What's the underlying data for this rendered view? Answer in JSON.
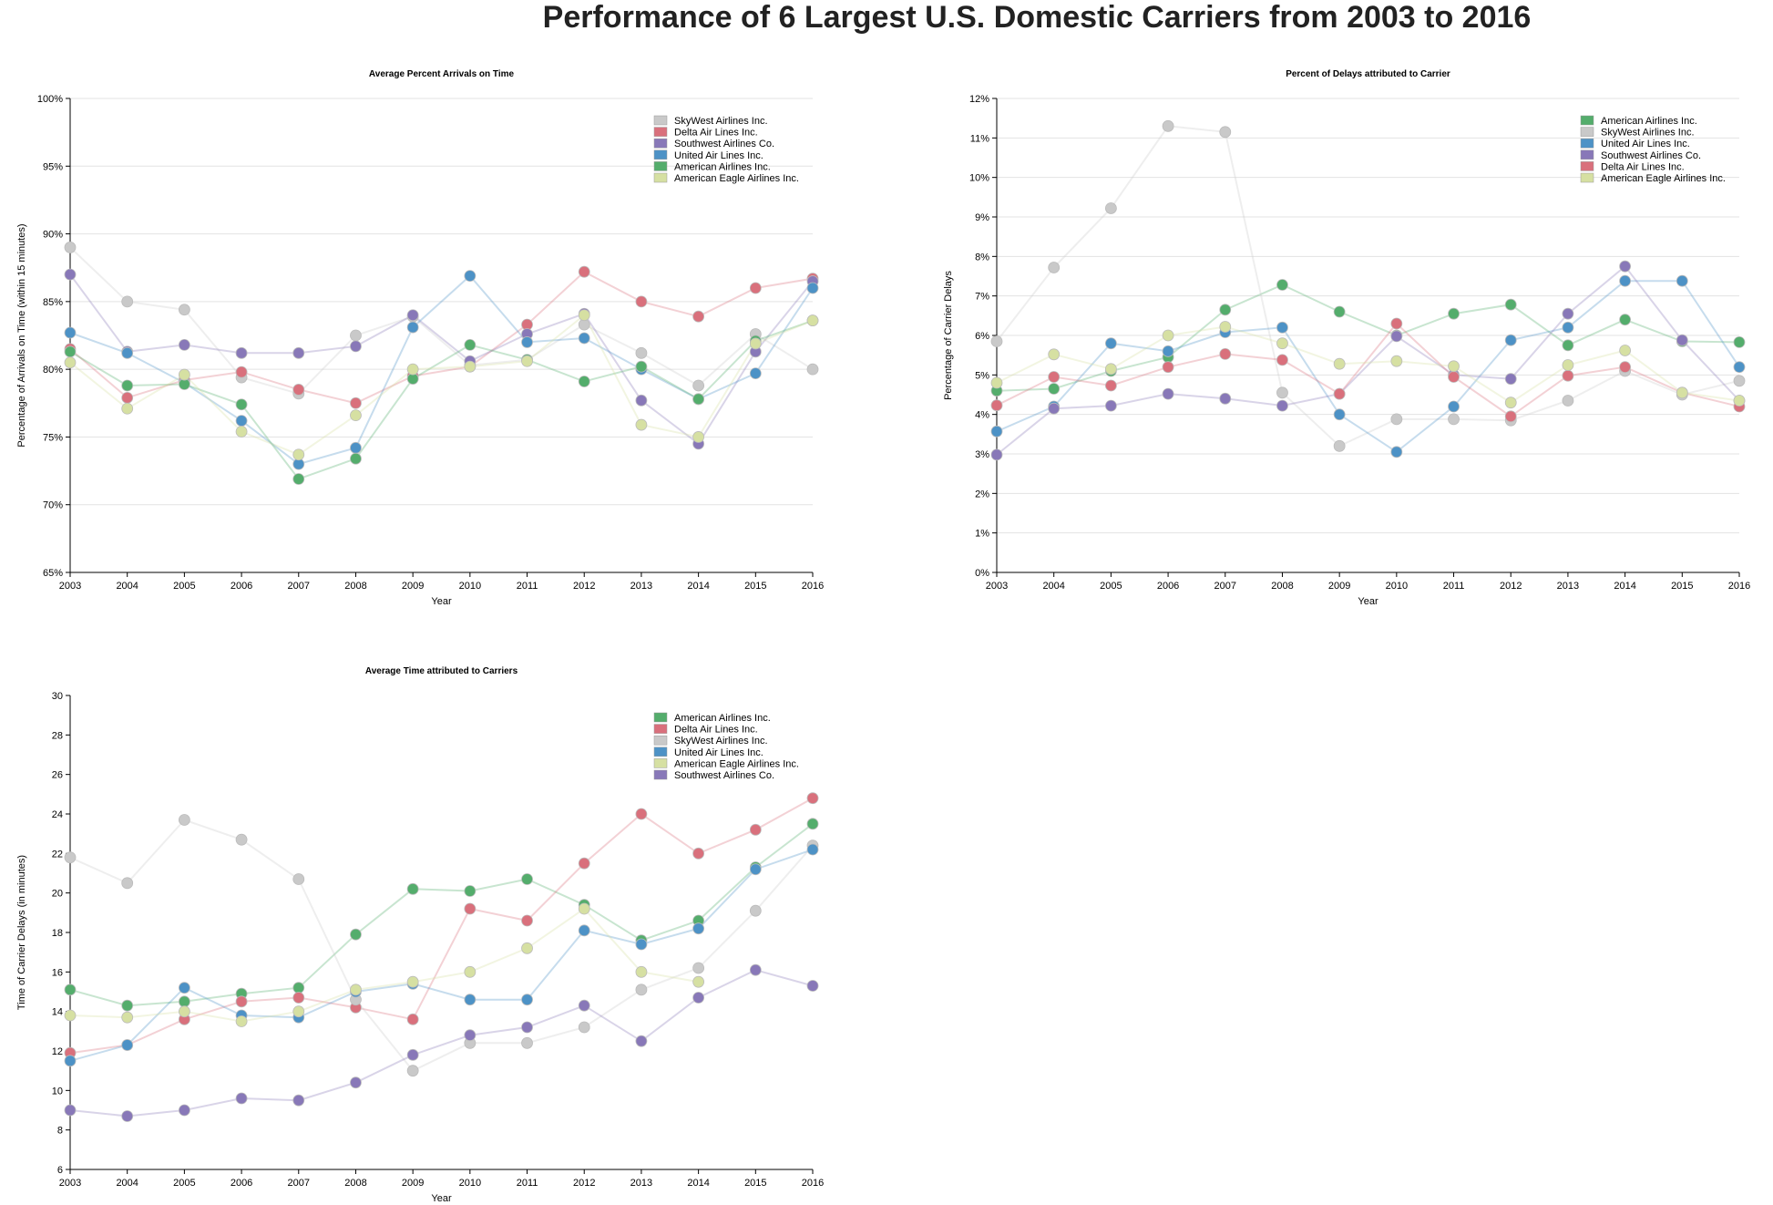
{
  "page": {
    "title": "Performance of 6 Largest U.S. Domestic Carriers from 2003 to 2016"
  },
  "colors": {
    "SkyWest Airlines Inc.": "#c9c9c9",
    "Delta Air Lines Inc.": "#d9707c",
    "Southwest Airlines Co.": "#8878b8",
    "United Air Lines Inc.": "#4d92c6",
    "American Airlines Inc.": "#54ad6c",
    "American Eagle Airlines Inc.": "#d6e0a2"
  },
  "chart_data": [
    {
      "type": "line",
      "title": "Average Percent Arrivals on Time",
      "xlabel": "Year",
      "ylabel": "Percentage of Arrivals on Time (within 15 minutes)",
      "x": [
        "2003",
        "2004",
        "2005",
        "2006",
        "2007",
        "2008",
        "2009",
        "2010",
        "2011",
        "2012",
        "2013",
        "2014",
        "2015",
        "2016"
      ],
      "ylim": [
        65,
        100
      ],
      "yticks": [
        65,
        70,
        75,
        80,
        85,
        90,
        95,
        100
      ],
      "ytick_labels": [
        "65%",
        "70%",
        "75%",
        "80%",
        "85%",
        "90%",
        "95%",
        "100%"
      ],
      "grid": true,
      "legend_position": "top-right",
      "series": [
        {
          "name": "SkyWest Airlines Inc.",
          "values": [
            89.0,
            85.0,
            84.4,
            79.4,
            78.2,
            82.5,
            83.9,
            80.3,
            80.7,
            83.3,
            81.2,
            78.8,
            82.6,
            80.0
          ]
        },
        {
          "name": "Delta Air Lines Inc.",
          "values": [
            81.5,
            77.9,
            79.2,
            79.8,
            78.5,
            77.5,
            79.5,
            80.2,
            83.3,
            87.2,
            85.0,
            83.9,
            86.0,
            86.7
          ]
        },
        {
          "name": "Southwest Airlines Co.",
          "values": [
            87.0,
            81.3,
            81.8,
            81.2,
            81.2,
            81.7,
            84.0,
            80.6,
            82.6,
            84.1,
            77.7,
            74.5,
            81.3,
            86.5
          ]
        },
        {
          "name": "United Air Lines Inc.",
          "values": [
            82.7,
            81.2,
            79.0,
            76.2,
            73.0,
            74.2,
            83.1,
            86.9,
            82.0,
            82.3,
            80.0,
            77.8,
            79.7,
            86.0
          ]
        },
        {
          "name": "American Airlines Inc.",
          "values": [
            81.3,
            78.8,
            78.9,
            77.4,
            71.9,
            73.4,
            79.3,
            81.8,
            80.7,
            79.1,
            80.2,
            77.8,
            82.1,
            83.6
          ]
        },
        {
          "name": "American Eagle Airlines Inc.",
          "values": [
            80.5,
            77.1,
            79.6,
            75.4,
            73.7,
            76.6,
            80.0,
            80.2,
            80.6,
            84.0,
            75.9,
            75.0,
            81.9,
            83.6
          ]
        }
      ]
    },
    {
      "type": "line",
      "title": "Percent of Delays attributed to Carrier",
      "xlabel": "Year",
      "ylabel": "Percentage of Carrier Delays",
      "x": [
        "2003",
        "2004",
        "2005",
        "2006",
        "2007",
        "2008",
        "2009",
        "2010",
        "2011",
        "2012",
        "2013",
        "2014",
        "2015",
        "2016"
      ],
      "ylim": [
        0,
        12
      ],
      "yticks": [
        0,
        1,
        2,
        3,
        4,
        5,
        6,
        7,
        8,
        9,
        10,
        11,
        12
      ],
      "ytick_labels": [
        "0%",
        "1%",
        "2%",
        "3%",
        "4%",
        "5%",
        "6%",
        "7%",
        "8%",
        "9%",
        "10%",
        "11%",
        "12%"
      ],
      "grid": true,
      "legend_position": "top-right",
      "series": [
        {
          "name": "American Airlines Inc.",
          "values": [
            4.6,
            4.65,
            5.1,
            5.45,
            6.65,
            7.28,
            6.6,
            6.0,
            6.55,
            6.78,
            5.75,
            6.4,
            5.85,
            5.83
          ]
        },
        {
          "name": "SkyWest Airlines Inc.",
          "values": [
            5.85,
            7.72,
            9.22,
            11.3,
            11.15,
            4.55,
            3.2,
            3.88,
            3.88,
            3.85,
            4.35,
            5.1,
            4.5,
            4.85
          ]
        },
        {
          "name": "United Air Lines Inc.",
          "values": [
            3.57,
            4.2,
            5.8,
            5.6,
            6.08,
            6.2,
            4.0,
            3.05,
            4.2,
            5.88,
            6.2,
            7.38,
            7.38,
            5.2
          ]
        },
        {
          "name": "Southwest Airlines Co.",
          "values": [
            2.98,
            4.15,
            4.22,
            4.52,
            4.4,
            4.22,
            4.52,
            5.98,
            5.0,
            4.9,
            6.55,
            7.75,
            5.88,
            4.35
          ]
        },
        {
          "name": "Delta Air Lines Inc.",
          "values": [
            4.23,
            4.95,
            4.73,
            5.2,
            5.53,
            5.38,
            4.52,
            6.3,
            4.95,
            3.95,
            4.98,
            5.2,
            4.55,
            4.2
          ]
        },
        {
          "name": "American Eagle Airlines Inc.",
          "values": [
            4.8,
            5.52,
            5.15,
            6.0,
            6.22,
            5.8,
            5.28,
            5.35,
            5.22,
            4.3,
            5.25,
            5.62,
            4.55,
            4.35
          ]
        }
      ]
    },
    {
      "type": "line",
      "title": "Average Time attributed to Carriers",
      "xlabel": "Year",
      "ylabel": "Time of Carrier Delays (in minutes)",
      "x": [
        "2003",
        "2004",
        "2005",
        "2006",
        "2007",
        "2008",
        "2009",
        "2010",
        "2011",
        "2012",
        "2013",
        "2014",
        "2015",
        "2016"
      ],
      "ylim": [
        6,
        30
      ],
      "yticks": [
        6,
        8,
        10,
        12,
        14,
        16,
        18,
        20,
        22,
        24,
        26,
        28,
        30
      ],
      "ytick_labels": [
        "6",
        "8",
        "10",
        "12",
        "14",
        "16",
        "18",
        "20",
        "22",
        "24",
        "26",
        "28",
        "30"
      ],
      "grid": false,
      "legend_position": "top-right",
      "series": [
        {
          "name": "American Airlines Inc.",
          "values": [
            15.1,
            14.3,
            14.5,
            14.9,
            15.2,
            17.9,
            20.2,
            20.1,
            20.7,
            19.4,
            17.6,
            18.6,
            21.3,
            23.5
          ]
        },
        {
          "name": "Delta Air Lines Inc.",
          "values": [
            11.9,
            12.3,
            13.6,
            14.5,
            14.7,
            14.2,
            13.6,
            19.2,
            18.6,
            21.5,
            24.0,
            22.0,
            23.2,
            24.8
          ]
        },
        {
          "name": "SkyWest Airlines Inc.",
          "values": [
            21.8,
            20.5,
            23.7,
            22.7,
            20.7,
            14.6,
            11.0,
            12.4,
            12.4,
            13.2,
            15.1,
            16.2,
            19.1,
            22.4
          ]
        },
        {
          "name": "United Air Lines Inc.",
          "values": [
            11.5,
            12.3,
            15.2,
            13.8,
            13.7,
            15.0,
            15.4,
            14.6,
            14.6,
            18.1,
            17.4,
            18.2,
            21.2,
            22.2
          ]
        },
        {
          "name": "American Eagle Airlines Inc.",
          "values": [
            13.8,
            13.7,
            14.0,
            13.5,
            14.0,
            15.1,
            15.5,
            16.0,
            17.2,
            19.2,
            16.0,
            15.5,
            null,
            null
          ]
        },
        {
          "name": "Southwest Airlines Co.",
          "values": [
            9.0,
            8.7,
            9.0,
            9.6,
            9.5,
            10.4,
            11.8,
            12.8,
            13.2,
            14.3,
            12.5,
            14.7,
            16.1,
            15.3
          ]
        }
      ]
    }
  ]
}
